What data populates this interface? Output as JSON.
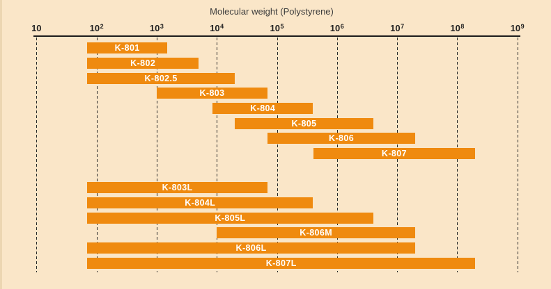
{
  "chart_data": {
    "type": "bar",
    "subtype": "horizontal-range-bars-log-x",
    "title": "Molecular weight (Polystyrene)",
    "x_axis": {
      "scale": "log10",
      "min": 10,
      "max": 1000000000,
      "gridlines": "dashed-vertical-at-each-decade",
      "ticks": [
        {
          "text": "10",
          "mantissa": "10",
          "exponent": ""
        },
        {
          "text": "10^2",
          "mantissa": "10",
          "exponent": "2"
        },
        {
          "text": "10^3",
          "mantissa": "10",
          "exponent": "3"
        },
        {
          "text": "10^4",
          "mantissa": "10",
          "exponent": "4"
        },
        {
          "text": "10^5",
          "mantissa": "10",
          "exponent": "5"
        },
        {
          "text": "10^6",
          "mantissa": "10",
          "exponent": "6"
        },
        {
          "text": "10^7",
          "mantissa": "10",
          "exponent": "7"
        },
        {
          "text": "10^8",
          "mantissa": "10",
          "exponent": "8"
        },
        {
          "text": "10^9",
          "mantissa": "10",
          "exponent": "9"
        }
      ]
    },
    "bars": [
      {
        "group": 1,
        "label": "K-801",
        "min": 70,
        "max": 1500
      },
      {
        "group": 1,
        "label": "K-802",
        "min": 70,
        "max": 5000
      },
      {
        "group": 1,
        "label": "K-802.5",
        "min": 70,
        "max": 20000
      },
      {
        "group": 1,
        "label": "K-803",
        "min": 1000,
        "max": 70000
      },
      {
        "group": 1,
        "label": "K-804",
        "min": 8500,
        "max": 400000
      },
      {
        "group": 1,
        "label": "K-805",
        "min": 20000,
        "max": 4000000
      },
      {
        "group": 1,
        "label": "K-806",
        "min": 70000,
        "max": 20000000
      },
      {
        "group": 1,
        "label": "K-807",
        "min": 400000,
        "max": 200000000
      },
      {
        "group": 2,
        "label": "K-803L",
        "min": 70,
        "max": 70000
      },
      {
        "group": 2,
        "label": "K-804L",
        "min": 70,
        "max": 400000
      },
      {
        "group": 2,
        "label": "K-805L",
        "min": 70,
        "max": 4000000
      },
      {
        "group": 2,
        "label": "K-806M",
        "min": 10000,
        "max": 20000000
      },
      {
        "group": 2,
        "label": "K-806L",
        "min": 70,
        "max": 20000000
      },
      {
        "group": 2,
        "label": "K-807L",
        "min": 70,
        "max": 200000000
      }
    ]
  },
  "colors": {
    "background": "#fae6c8",
    "bar": "#ef8a0f",
    "bar_label": "#ffffff",
    "axis_text": "#222222",
    "title_text": "#3c3c3c",
    "line": "#1b1b1b"
  }
}
